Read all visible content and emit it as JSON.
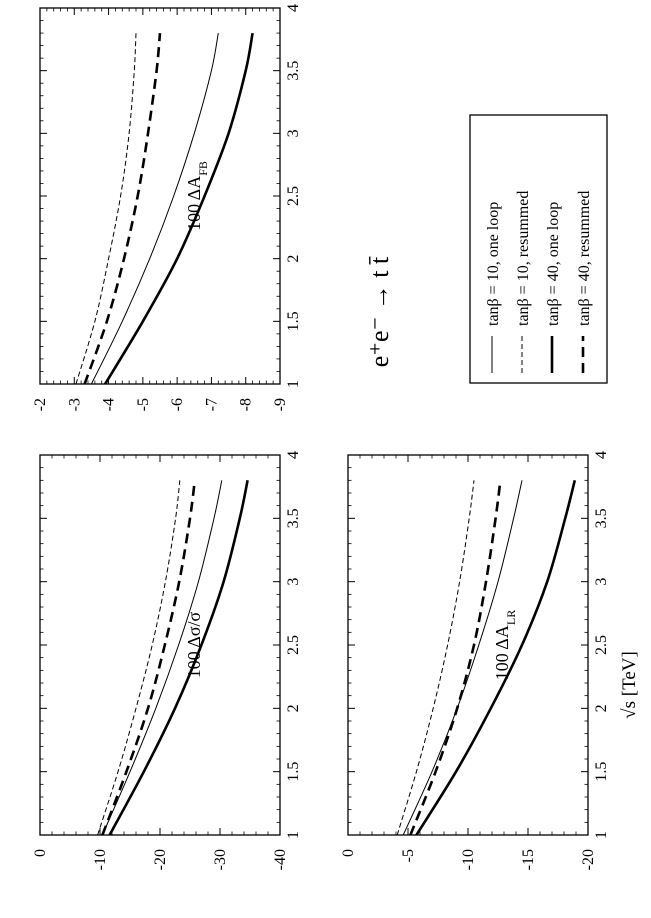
{
  "figure": {
    "process_label": "e⁺e⁻ → t t̄",
    "xlabel": "√s [TeV]",
    "x_ticks": [
      "1",
      "1.5",
      "2",
      "2.5",
      "3",
      "3.5",
      "4"
    ]
  },
  "legend": {
    "placement": "right",
    "entries": [
      {
        "label": "tanβ = 10, one loop",
        "style": "thin-solid"
      },
      {
        "label": "tanβ = 10, resummed",
        "style": "thin-dashed"
      },
      {
        "label": "tanβ = 40, one loop",
        "style": "thick-solid"
      },
      {
        "label": "tanβ = 40, resummed",
        "style": "thick-dashed"
      }
    ]
  },
  "chart_data": [
    {
      "type": "line",
      "ylabel": "100 Δσ/σ",
      "xlim": [
        1,
        4
      ],
      "ylim": [
        0,
        -40
      ],
      "y_ticks": [
        0,
        -10,
        -20,
        -30,
        -40
      ],
      "y_tick_labels": [
        "0",
        "-10",
        "-20",
        "-30",
        "-40"
      ],
      "series": [
        {
          "name": "tanβ = 10, one loop",
          "style": "thin-solid",
          "x": [
            1.0,
            1.5,
            2.0,
            2.5,
            3.0,
            3.5,
            3.8
          ],
          "y": [
            -10.4,
            -15.0,
            -19.3,
            -23.1,
            -26.4,
            -29.0,
            -30.3
          ]
        },
        {
          "name": "tanβ = 10, resummed",
          "style": "thin-dashed",
          "x": [
            1.0,
            1.5,
            2.0,
            2.5,
            3.0,
            3.5,
            3.8
          ],
          "y": [
            -9.6,
            -13.0,
            -16.0,
            -18.7,
            -20.9,
            -22.6,
            -23.3
          ]
        },
        {
          "name": "tanβ = 40, one loop",
          "style": "thick-solid",
          "x": [
            1.0,
            1.5,
            2.0,
            2.5,
            3.0,
            3.5,
            3.8
          ],
          "y": [
            -11.6,
            -17.3,
            -22.5,
            -26.9,
            -30.6,
            -33.3,
            -34.6
          ]
        },
        {
          "name": "tanβ = 40, resummed",
          "style": "thick-dashed",
          "x": [
            1.0,
            1.5,
            2.0,
            2.5,
            3.0,
            3.5,
            3.8
          ],
          "y": [
            -10.4,
            -14.4,
            -18.0,
            -20.8,
            -23.2,
            -25.0,
            -25.8
          ]
        }
      ]
    },
    {
      "type": "line",
      "ylabel": "100 ΔA_LR",
      "xlim": [
        1,
        4
      ],
      "ylim": [
        0,
        -20
      ],
      "y_ticks": [
        0,
        -5,
        -10,
        -15,
        -20
      ],
      "y_tick_labels": [
        "0",
        "-5",
        "-10",
        "-15",
        "-20"
      ],
      "series": [
        {
          "name": "tanβ = 10, one loop",
          "style": "thin-solid",
          "x": [
            1.0,
            1.5,
            2.0,
            2.5,
            3.0,
            3.5,
            3.8
          ],
          "y": [
            -4.6,
            -7.0,
            -9.1,
            -10.9,
            -12.5,
            -13.8,
            -14.5
          ]
        },
        {
          "name": "tanβ = 10, resummed",
          "style": "thin-dashed",
          "x": [
            1.0,
            1.5,
            2.0,
            2.5,
            3.0,
            3.5,
            3.8
          ],
          "y": [
            -4.1,
            -5.7,
            -7.1,
            -8.3,
            -9.3,
            -10.1,
            -10.5
          ]
        },
        {
          "name": "tanβ = 40, one loop",
          "style": "thick-solid",
          "x": [
            1.0,
            1.5,
            2.0,
            2.5,
            3.0,
            3.5,
            3.8
          ],
          "y": [
            -5.7,
            -9.0,
            -11.9,
            -14.5,
            -16.6,
            -18.1,
            -18.9
          ]
        },
        {
          "name": "tanβ = 40, resummed",
          "style": "thick-dashed",
          "x": [
            1.0,
            1.5,
            2.0,
            2.5,
            3.0,
            3.5,
            3.8
          ],
          "y": [
            -5.2,
            -7.3,
            -9.1,
            -10.5,
            -11.5,
            -12.3,
            -12.7
          ]
        }
      ]
    },
    {
      "type": "line",
      "ylabel": "100 ΔA_FB",
      "xlim": [
        1,
        4
      ],
      "ylim": [
        -2,
        -9
      ],
      "y_ticks": [
        -2,
        -3,
        -4,
        -5,
        -6,
        -7,
        -8,
        -9
      ],
      "y_tick_labels": [
        "-2",
        "-3",
        "-4",
        "-5",
        "-6",
        "-7",
        "-8",
        "-9"
      ],
      "series": [
        {
          "name": "tanβ = 10, one loop",
          "style": "thin-solid",
          "x": [
            1.0,
            1.5,
            2.0,
            2.5,
            3.0,
            3.5,
            3.8
          ],
          "y": [
            -3.5,
            -4.4,
            -5.2,
            -5.9,
            -6.5,
            -7.0,
            -7.2
          ]
        },
        {
          "name": "tanβ = 10, resummed",
          "style": "thin-dashed",
          "x": [
            1.0,
            1.5,
            2.0,
            2.5,
            3.0,
            3.5,
            3.8
          ],
          "y": [
            -3.05,
            -3.6,
            -4.0,
            -4.35,
            -4.6,
            -4.75,
            -4.8
          ]
        },
        {
          "name": "tanβ = 40, one loop",
          "style": "thick-solid",
          "x": [
            1.0,
            1.5,
            2.0,
            2.5,
            3.0,
            3.5,
            3.8
          ],
          "y": [
            -3.9,
            -5.0,
            -6.0,
            -6.8,
            -7.5,
            -8.0,
            -8.2
          ]
        },
        {
          "name": "tanβ = 40, resummed",
          "style": "thick-dashed",
          "x": [
            1.0,
            1.5,
            2.0,
            2.5,
            3.0,
            3.5,
            3.8
          ],
          "y": [
            -3.3,
            -3.95,
            -4.45,
            -4.85,
            -5.15,
            -5.4,
            -5.5
          ]
        }
      ]
    }
  ]
}
